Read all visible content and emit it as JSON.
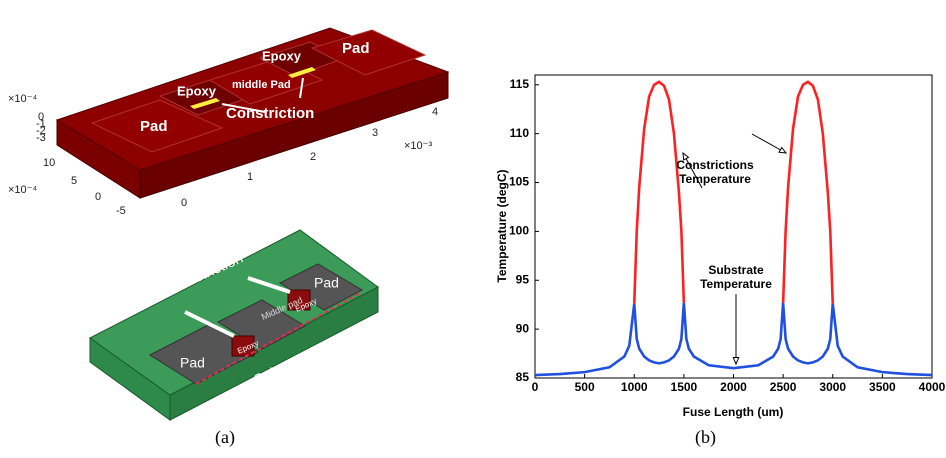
{
  "panel_a": {
    "caption": "(a)",
    "render_labels": [
      "Pad",
      "Epoxy",
      "middle Pad",
      "Epoxy",
      "Pad",
      "Constriction"
    ],
    "x_axis_ticks": [
      "0",
      "1",
      "2",
      "3",
      "4"
    ],
    "x_axis_exponent": "×10⁻³",
    "y_axis_ticks": [
      "-5",
      "0",
      "5",
      "10"
    ],
    "y_axis_exponent": "×10⁻⁴",
    "z_axis_ticks": [
      "0",
      "-1",
      "-2",
      "-3"
    ],
    "z_axis_exponent": "×10⁻⁴",
    "schematic_labels": [
      "Constriction",
      "Pad",
      "Middle pad",
      "Epoxy",
      "Epoxy",
      "Pad",
      "Substrate"
    ]
  },
  "chart_data": {
    "type": "line",
    "caption": "(b)",
    "x_label": "Fuse Length (um)",
    "y_label": "Temperature (degC)",
    "x": [
      0,
      250,
      500,
      750,
      900,
      950,
      1000,
      1025,
      1050,
      1100,
      1150,
      1200,
      1250,
      1300,
      1350,
      1400,
      1450,
      1475,
      1500,
      1525,
      1550,
      1600,
      1750,
      2000,
      2250,
      2400,
      2450,
      2475,
      2500,
      2525,
      2550,
      2600,
      2650,
      2700,
      2750,
      2800,
      2850,
      2900,
      2950,
      2975,
      3000,
      3050,
      3100,
      3250,
      3500,
      3750,
      4000
    ],
    "series": [
      {
        "name": "Substrate Temperature",
        "color": "#2050e0",
        "values": [
          85.3,
          85.4,
          85.6,
          86.1,
          87.2,
          88.3,
          92.6,
          89.0,
          88.0,
          87.2,
          86.8,
          86.6,
          86.5,
          86.6,
          86.8,
          87.2,
          88.0,
          89.0,
          92.7,
          89.0,
          88.0,
          87.2,
          86.3,
          86.0,
          86.3,
          87.2,
          88.0,
          89.0,
          92.7,
          89.0,
          88.0,
          87.2,
          86.8,
          86.6,
          86.5,
          86.6,
          86.8,
          87.2,
          88.0,
          89.0,
          92.6,
          88.3,
          87.2,
          86.1,
          85.6,
          85.4,
          85.3
        ]
      },
      {
        "name": "Constrictions Temperature",
        "color": "#ff2020",
        "values": [
          null,
          null,
          null,
          null,
          null,
          null,
          92.6,
          100.0,
          104.5,
          110.5,
          113.8,
          115.0,
          115.3,
          114.9,
          113.5,
          110.0,
          104.0,
          100.0,
          92.7,
          null,
          null,
          null,
          null,
          null,
          null,
          null,
          null,
          null,
          92.7,
          100.0,
          104.5,
          110.5,
          113.8,
          115.0,
          115.3,
          114.9,
          113.5,
          110.0,
          104.0,
          100.0,
          92.6,
          null,
          null,
          null,
          null,
          null,
          null
        ]
      }
    ],
    "annotations": [
      {
        "lines": [
          "Constrictions",
          "Temperature"
        ]
      },
      {
        "lines": [
          "Substrate",
          "Temperature"
        ]
      }
    ],
    "xlim": [
      0,
      4000
    ],
    "xticks": [
      0,
      500,
      1000,
      1500,
      2000,
      2500,
      3000,
      3500,
      4000
    ],
    "ylim": [
      85,
      116
    ],
    "yticks": [
      85,
      90,
      95,
      100,
      105,
      110,
      115
    ]
  }
}
